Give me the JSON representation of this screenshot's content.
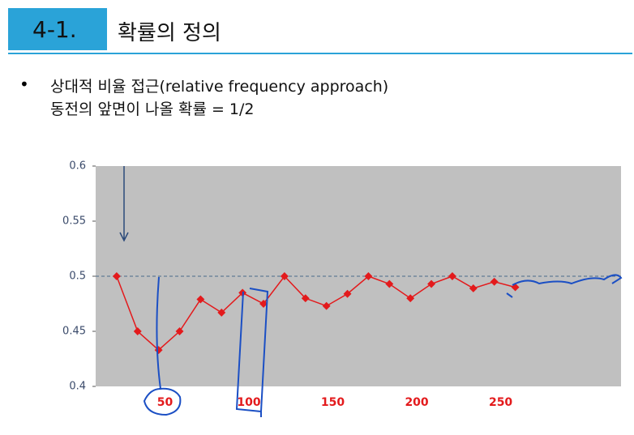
{
  "header": {
    "number": "4-1.",
    "title": "확률의 정의"
  },
  "bullets": [
    "상대적 비율 접근(relative frequency approach)",
    "동전의 앞면이 나올 확률 = 1/2"
  ],
  "chart_data": {
    "type": "line",
    "x": [
      12.5,
      25,
      37.5,
      50,
      62.5,
      75,
      87.5,
      100,
      112.5,
      125,
      137.5,
      150,
      162.5,
      175,
      187.5,
      200,
      212.5,
      225,
      237.5,
      250
    ],
    "series": [
      {
        "color": "#e31a1c",
        "values": [
          0.5,
          0.45,
          0.433,
          0.45,
          0.479,
          0.467,
          0.485,
          0.475,
          0.5,
          0.48,
          0.473,
          0.484,
          0.5,
          0.493,
          0.48,
          0.493,
          0.5,
          0.489,
          0.495,
          0.49
        ]
      }
    ],
    "xlim": [
      0,
      313
    ],
    "xticks": [
      50,
      100,
      150,
      200,
      250
    ],
    "ylim": [
      0.4,
      0.6
    ],
    "yticks": [
      0.4,
      0.45,
      0.5,
      0.55,
      0.6
    ],
    "reference_line": 0.5
  }
}
